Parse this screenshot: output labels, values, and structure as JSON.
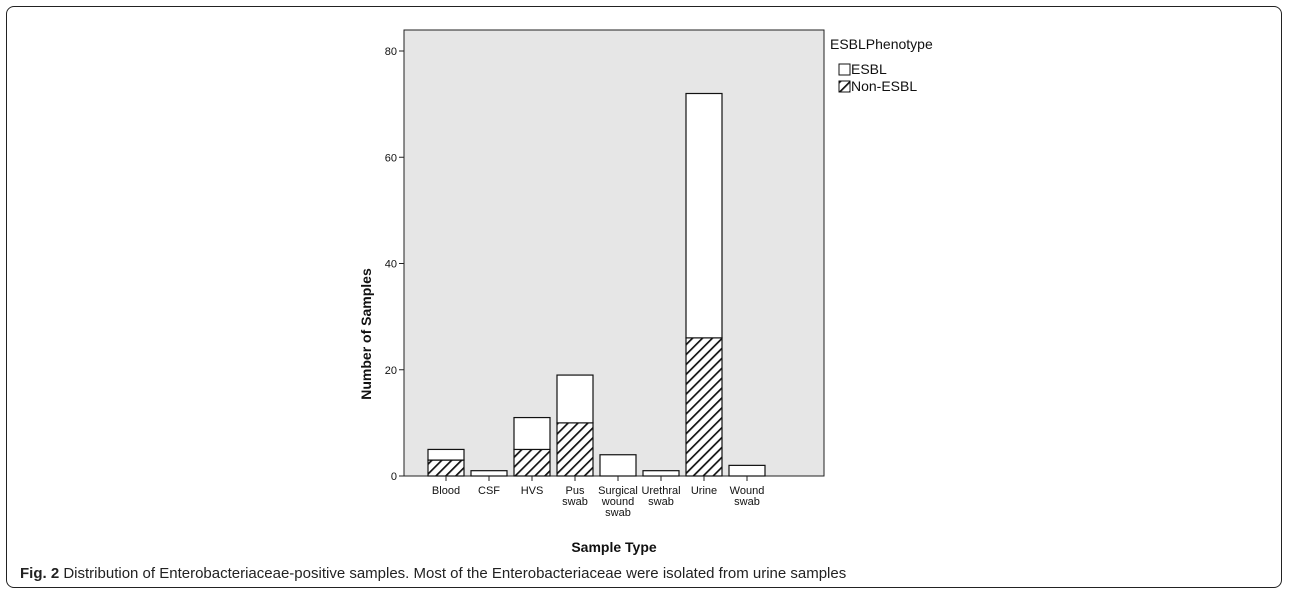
{
  "chart_data": {
    "type": "bar",
    "stacked": true,
    "xlabel": "Sample Type",
    "ylabel": "Number of Samples",
    "ylim": [
      0,
      84
    ],
    "yticks": [
      0,
      20,
      40,
      60,
      80
    ],
    "categories": [
      [
        "Blood"
      ],
      [
        "CSF"
      ],
      [
        "HVS"
      ],
      [
        "Pus",
        "swab"
      ],
      [
        "Surgical",
        "wound",
        "swab"
      ],
      [
        "Urethral",
        "swab"
      ],
      [
        "Urine"
      ],
      [
        "Wound",
        "swab"
      ]
    ],
    "series": [
      {
        "name": "Non-ESBL",
        "pattern": "hatched",
        "values": [
          3,
          0,
          5,
          10,
          0,
          0,
          26,
          0
        ]
      },
      {
        "name": "ESBL",
        "pattern": "white",
        "values": [
          2,
          1,
          6,
          9,
          4,
          1,
          46,
          2
        ]
      }
    ],
    "legend": {
      "title": "ESBLPhenotype",
      "position": "right"
    },
    "colors": {
      "plot_background": "#e6e6e6",
      "bar_fill": "#ffffff",
      "bar_stroke": "#111111"
    }
  },
  "caption": {
    "label": "Fig. 2",
    "text": "Distribution of Enterobacteriaceae-positive samples. Most of the Enterobacteriaceae were isolated from urine samples"
  }
}
